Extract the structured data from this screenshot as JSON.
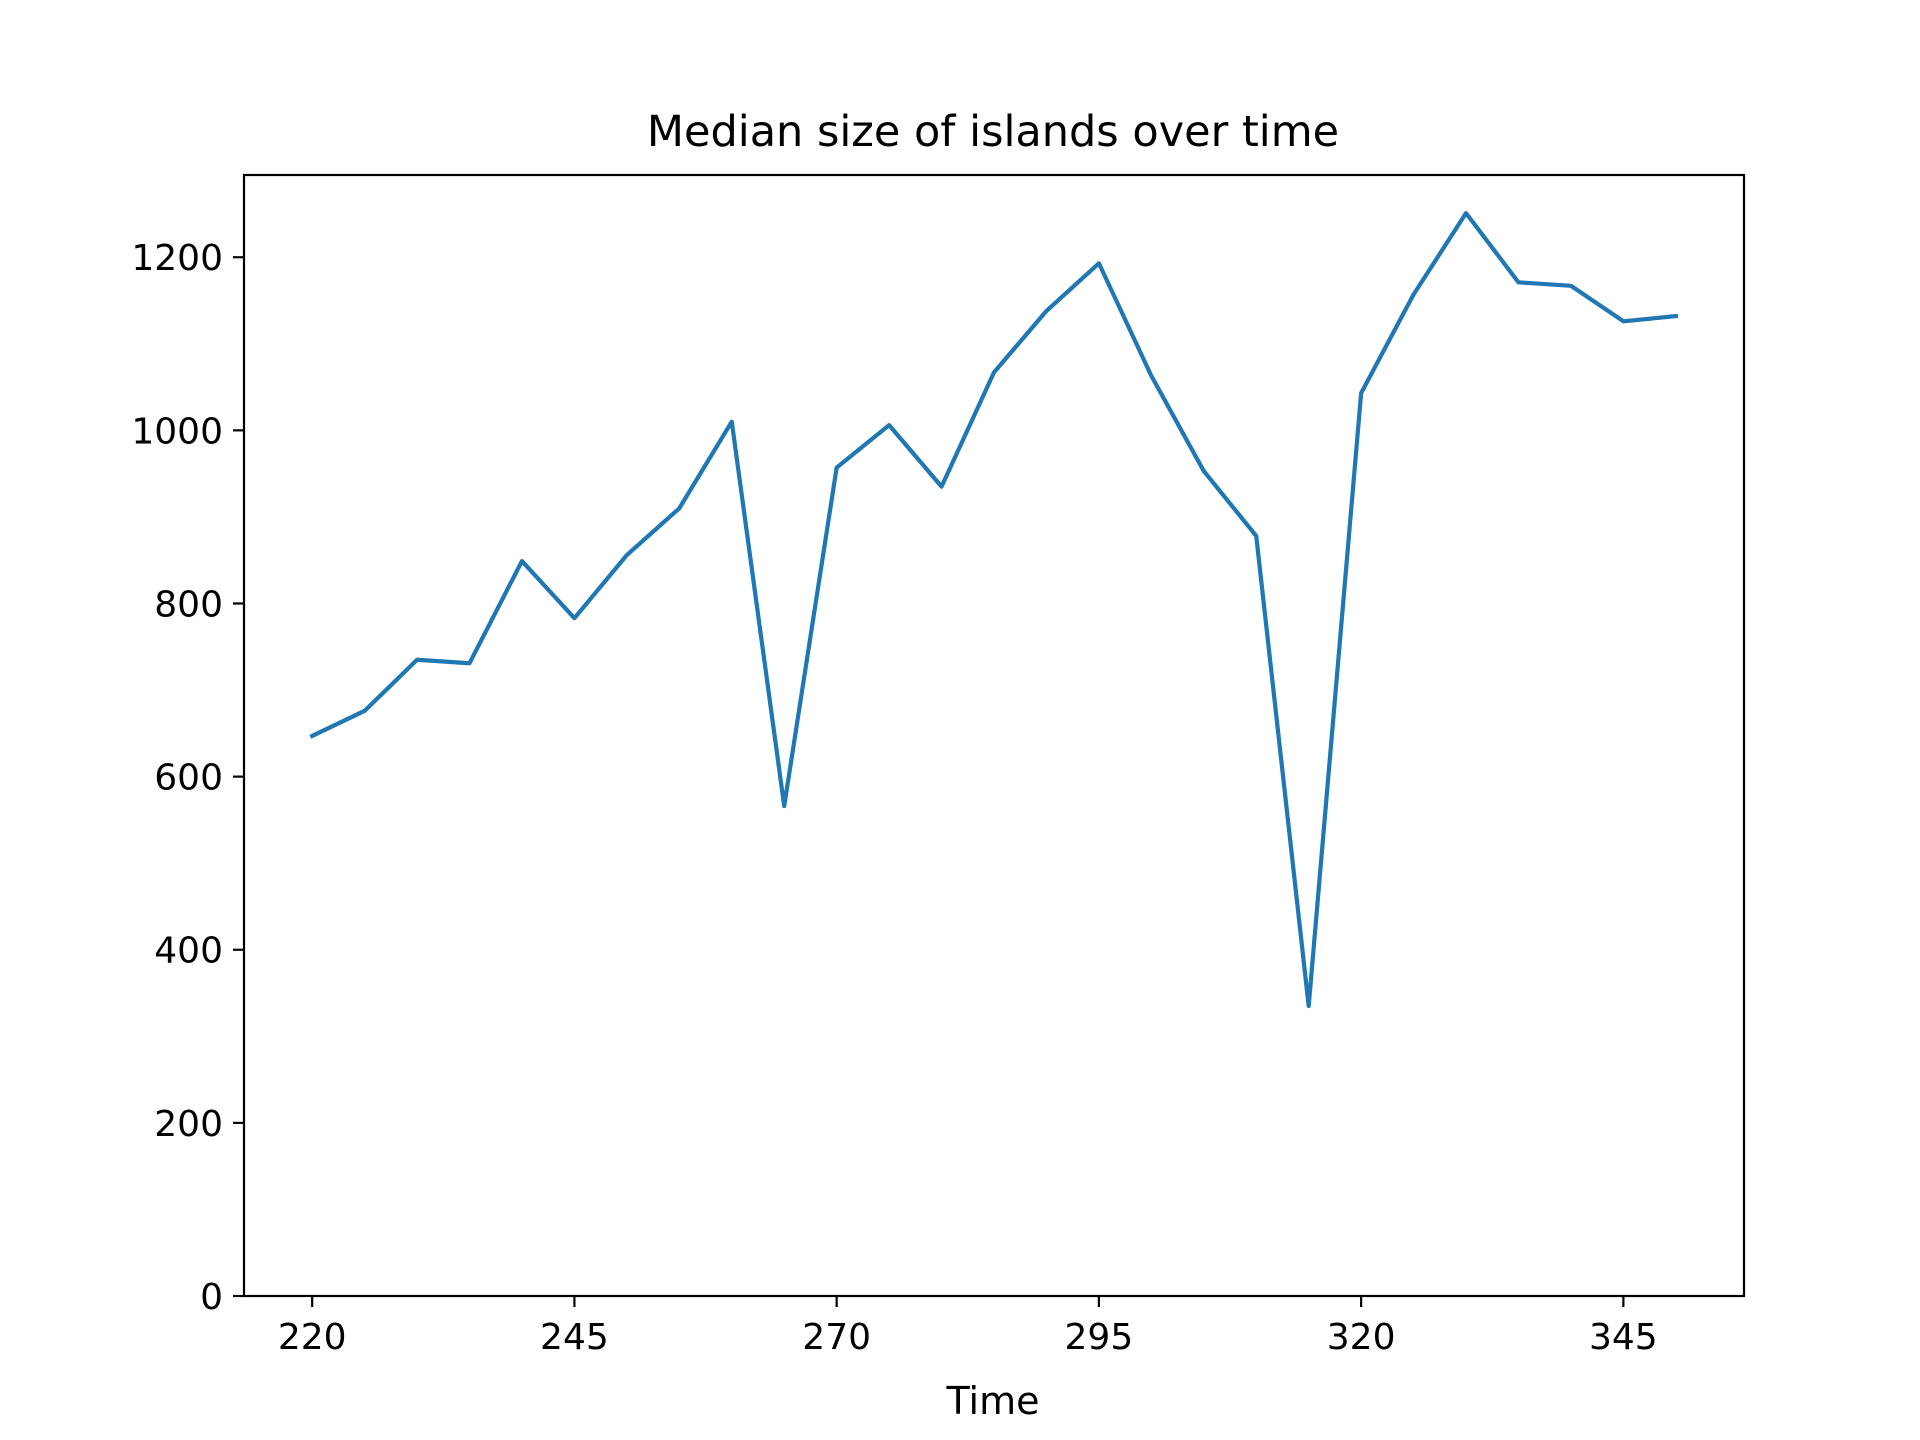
{
  "chart_data": {
    "type": "line",
    "title": "Median size of islands over time",
    "xlabel": "Time",
    "ylabel": "",
    "xlim": [
      213.5,
      356.5
    ],
    "ylim": [
      0,
      1295
    ],
    "xticks": [
      220,
      245,
      270,
      295,
      320,
      345
    ],
    "yticks": [
      0,
      200,
      400,
      600,
      800,
      1000,
      1200
    ],
    "grid": false,
    "legend": "none",
    "colors": {
      "line": "#1f77b4",
      "axes": "#000000",
      "background": "#ffffff"
    },
    "series": [
      {
        "x": [
          220,
          225,
          230,
          235,
          240,
          245,
          250,
          255,
          260,
          265,
          270,
          275,
          280,
          285,
          290,
          295,
          300,
          305,
          310,
          315,
          320,
          325,
          330,
          335,
          340,
          345,
          350
        ],
        "values": [
          647,
          676,
          735,
          731,
          849,
          783,
          856,
          910,
          1010,
          566,
          957,
          1006,
          935,
          1067,
          1138,
          1193,
          1063,
          953,
          878,
          335,
          1043,
          1157,
          1251,
          1171,
          1167,
          1126,
          1132
        ]
      }
    ]
  }
}
